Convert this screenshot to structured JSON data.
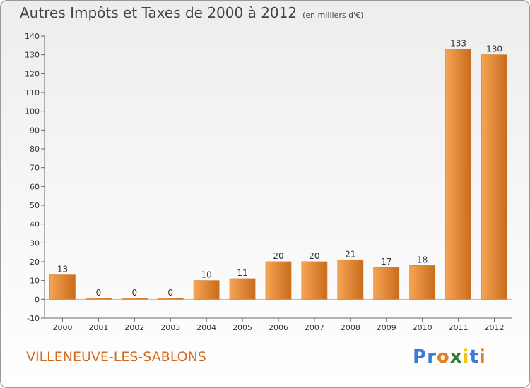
{
  "title": "Autres Impôts et Taxes de 2000 à 2012",
  "unit_note": "(en milliers d'€)",
  "commune": "VILLENEUVE-LES-SABLONS",
  "logo": {
    "text": "Proxiti",
    "letters": [
      "P",
      "r",
      "o",
      "x",
      "i",
      "t",
      "i"
    ],
    "colors": [
      "#3a7bd5",
      "#3a7bd5",
      "#e67e22",
      "#2e7d32",
      "#f1c40f",
      "#3a7bd5",
      "#e67e22"
    ]
  },
  "colors": {
    "bar_light": "#f6a455",
    "bar_dark": "#c96c1c",
    "label": "#333333",
    "commune": "#d2691e"
  },
  "chart_data": {
    "type": "bar",
    "categories": [
      "2000",
      "2001",
      "2002",
      "2003",
      "2004",
      "2005",
      "2006",
      "2007",
      "2008",
      "2009",
      "2010",
      "2011",
      "2012"
    ],
    "values": [
      13,
      0,
      0,
      0,
      10,
      11,
      20,
      20,
      21,
      17,
      18,
      133,
      130
    ],
    "data_labels": [
      "13",
      "0",
      "0",
      "0",
      "10",
      "11",
      "20",
      "20",
      "21",
      "17",
      "18",
      "133",
      "130"
    ],
    "ylim": [
      -10,
      140
    ],
    "yticks": [
      -10,
      0,
      10,
      20,
      30,
      40,
      50,
      60,
      70,
      80,
      90,
      100,
      110,
      120,
      130,
      140
    ],
    "grid": false
  }
}
